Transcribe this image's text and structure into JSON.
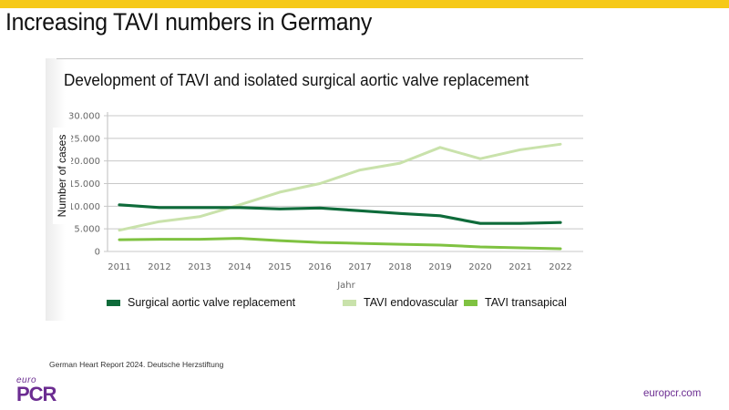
{
  "slide": {
    "title": "Increasing TAVI numbers in Germany",
    "accent_color": "#f6c918",
    "source": "German Heart Report 2024. Deutsche Herzstiftung",
    "logo": {
      "top": "euro",
      "bottom": "PCR",
      "color": "#6b2c91"
    },
    "website": "europcr.com"
  },
  "chart_data": {
    "type": "line",
    "title": "Development of TAVI and isolated surgical aortic valve replacement",
    "xlabel": "Jahr",
    "ylabel": "Number of cases",
    "ylim": [
      0,
      30000
    ],
    "yticks": [
      0,
      5000,
      10000,
      15000,
      20000,
      25000,
      30000
    ],
    "ytick_labels": [
      "0",
      "5.000",
      "10.000",
      "15.000",
      "20.000",
      "25.000",
      "30.000"
    ],
    "grid": true,
    "legend_position": "bottom",
    "categories": [
      "2011",
      "2012",
      "2013",
      "2014",
      "2015",
      "2016",
      "2017",
      "2018",
      "2019",
      "2020",
      "2021",
      "2022"
    ],
    "series": [
      {
        "name": "Surgical aortic valve replacement",
        "color": "#0e6b3a",
        "values": [
          10300,
          9700,
          9700,
          9700,
          9400,
          9600,
          9000,
          8400,
          7900,
          6200,
          6200,
          6400
        ]
      },
      {
        "name": "TAVI endovascular",
        "color": "#c9e2ab",
        "values": [
          4700,
          6600,
          7700,
          10300,
          13100,
          15000,
          18000,
          19500,
          23000,
          20500,
          22500,
          23700
        ]
      },
      {
        "name": "TAVI transapical",
        "color": "#7fc241",
        "values": [
          2600,
          2700,
          2700,
          2900,
          2400,
          2000,
          1800,
          1600,
          1400,
          1000,
          800,
          600
        ]
      }
    ]
  }
}
